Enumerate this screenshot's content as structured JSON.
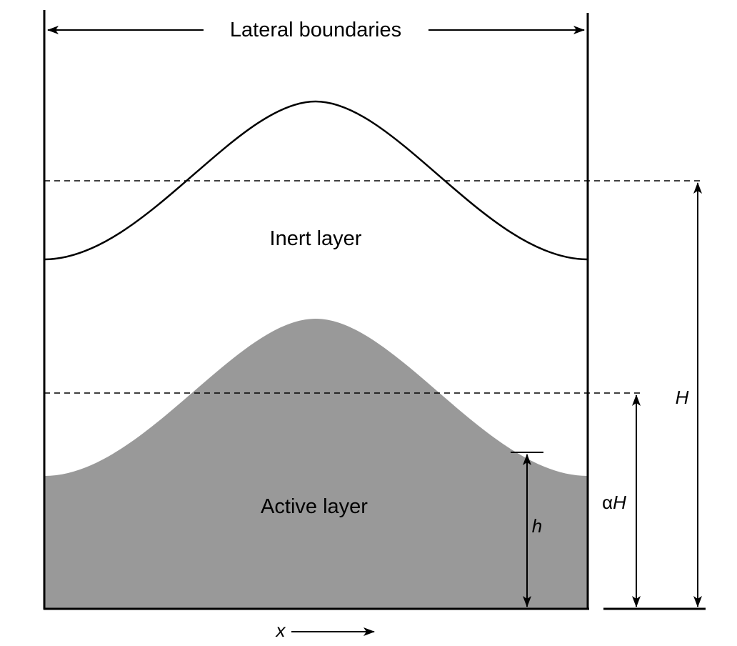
{
  "diagram": {
    "top_label": "Lateral boundaries",
    "inert_label": "Inert layer",
    "active_label": "Active layer",
    "h_symbol": "h",
    "alpha_h_prefix": "α",
    "alpha_h_symbol": "H",
    "H_symbol": "H",
    "x_symbol": "x",
    "colors": {
      "active_fill": "#999999",
      "line": "#000000",
      "background": "#ffffff"
    }
  }
}
